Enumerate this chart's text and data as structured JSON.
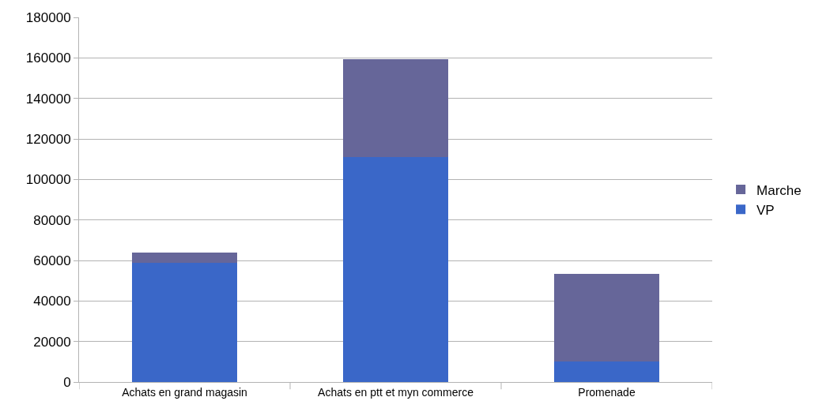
{
  "chart_data": {
    "type": "bar",
    "stacked": true,
    "categories": [
      "Achats en grand magasin",
      "Achats en ptt et myn commerce",
      "Promenade"
    ],
    "series": [
      {
        "name": "VP",
        "color": "#3a67c8",
        "values": [
          59000,
          111000,
          10000
        ]
      },
      {
        "name": "Marche",
        "color": "#666699",
        "values": [
          5000,
          48500,
          43500
        ]
      }
    ],
    "ylim": [
      0,
      180000
    ],
    "yticks": [
      0,
      20000,
      40000,
      60000,
      80000,
      100000,
      120000,
      140000,
      160000,
      180000
    ],
    "grid": "y",
    "legend": "right"
  }
}
